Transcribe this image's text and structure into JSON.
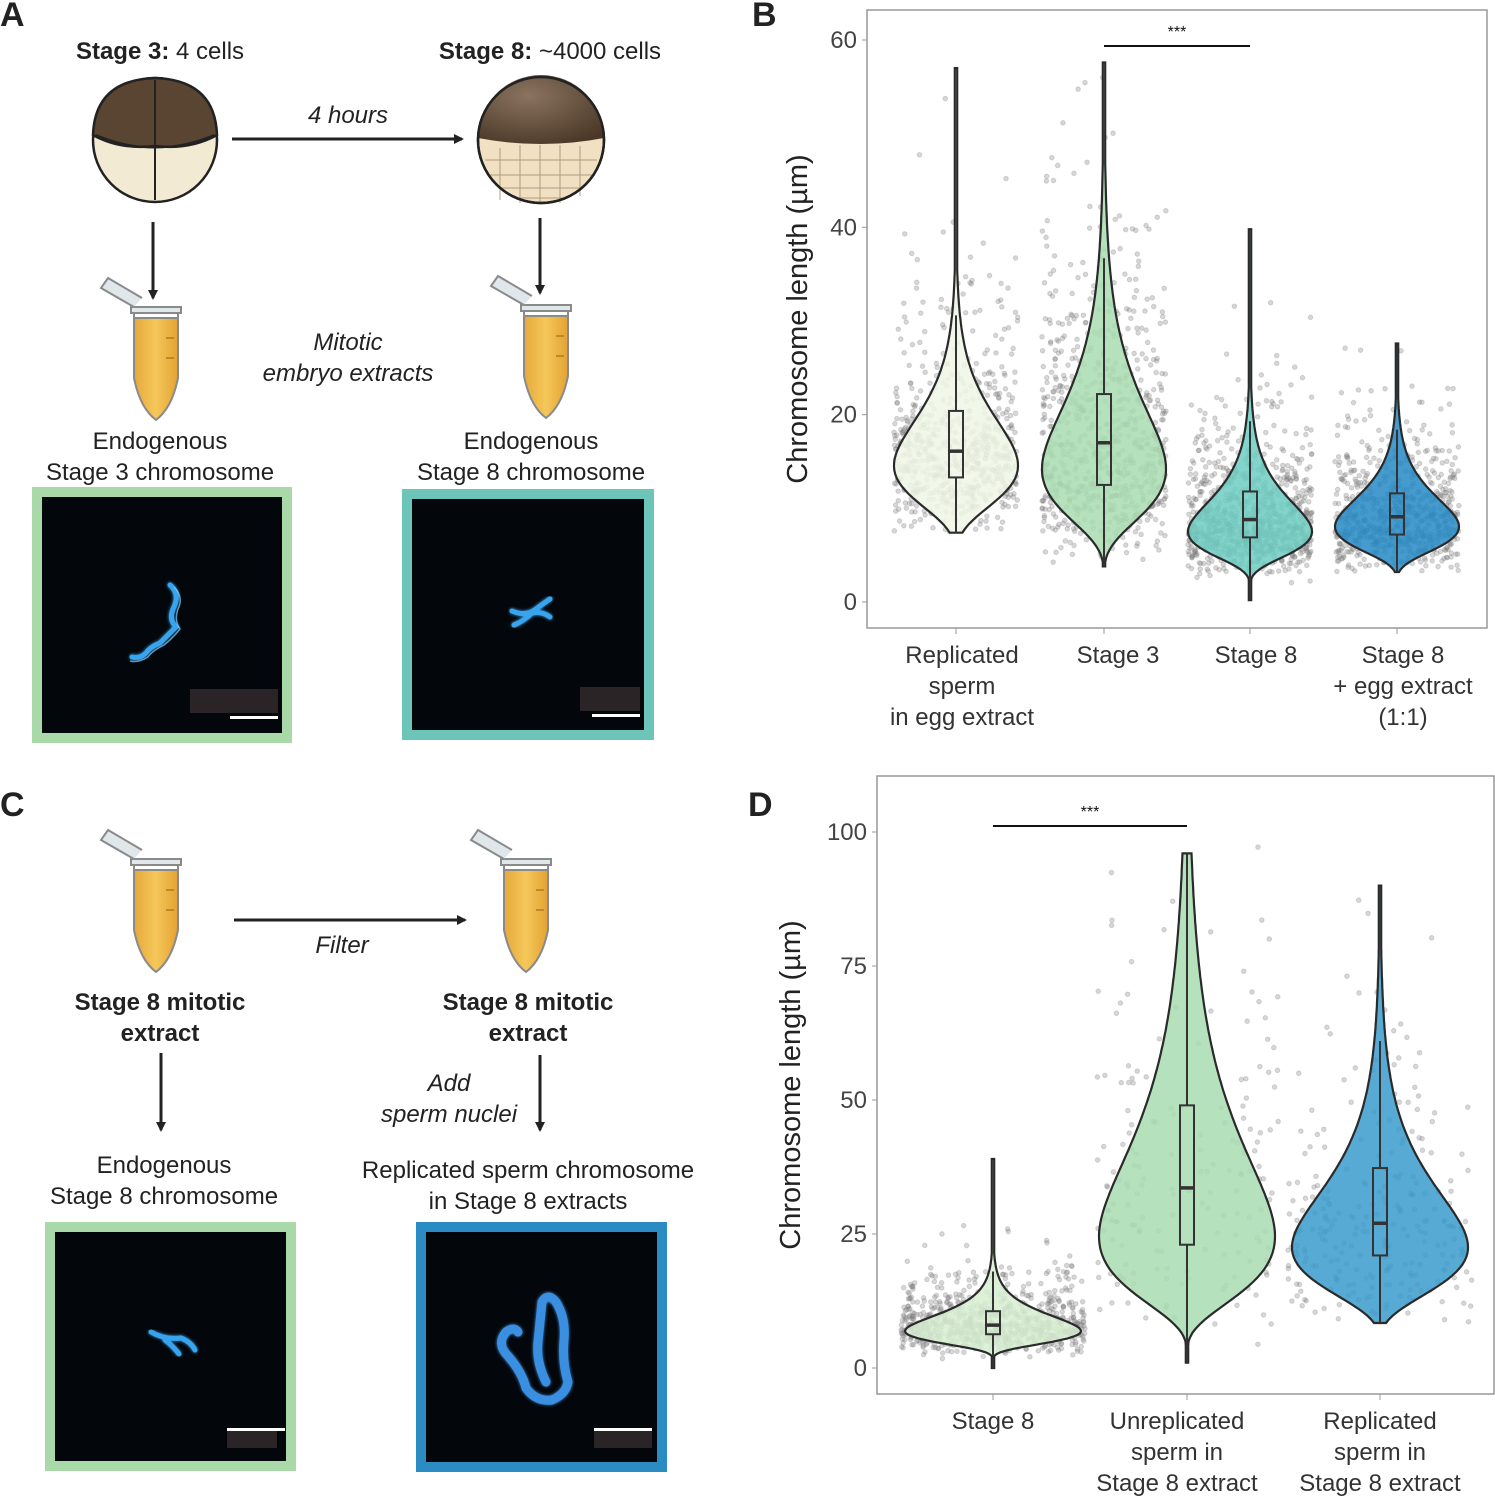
{
  "panels": {
    "a": {
      "label": "A",
      "stage3_title_bold": "Stage 3:",
      "stage3_title_rest": " 4 cells",
      "stage8_title_bold": "Stage 8:",
      "stage8_title_rest": " ~4000 cells",
      "arrow_label": "4 hours",
      "extract_label_line1": "Mitotic",
      "extract_label_line2": "embryo extracts",
      "left_caption_line1": "Endogenous",
      "left_caption_line2": "Stage 3 chromosome",
      "right_caption_line1": "Endogenous",
      "right_caption_line2": "Stage 8 chromosome",
      "left_frame_color": "#a9d9a8",
      "right_frame_color": "#6dc5b9"
    },
    "c": {
      "label": "C",
      "arrow_label": "Filter",
      "left_tube_line1": "Stage 8 mitotic",
      "left_tube_line2": "extract",
      "right_tube_line1": "Stage 8 mitotic",
      "right_tube_line2": "extract",
      "add_label_line1": "Add",
      "add_label_line2": "sperm nuclei",
      "left_caption_line1": "Endogenous",
      "left_caption_line2": "Stage 8 chromosome",
      "right_caption_line1": "Replicated sperm chromosome",
      "right_caption_line2": "in Stage 8 extracts",
      "left_frame_color": "#a9d9a8",
      "right_frame_color": "#2b8cc4"
    },
    "b": {
      "label": "B"
    },
    "d": {
      "label": "D"
    }
  },
  "chart_data": [
    {
      "type": "violin",
      "panel": "B",
      "ylabel": "Chromosome length (µm)",
      "ylim": [
        0,
        60
      ],
      "yticks": [
        "0",
        "20",
        "40",
        "60"
      ],
      "grid": false,
      "categories": [
        [
          "Replicated",
          "sperm",
          "in egg extract"
        ],
        [
          "Stage 3"
        ],
        [
          "Stage 8"
        ],
        [
          "Stage 8",
          "+ egg extract",
          "(1:1)"
        ]
      ],
      "series": [
        {
          "min": 7.4,
          "q1": 13.3,
          "median": 16.1,
          "q3": 20.4,
          "upper_whisker": 30.6,
          "max": 57.0,
          "color": "#eef7e5"
        },
        {
          "min": 3.8,
          "q1": 12.5,
          "median": 17.0,
          "q3": 22.2,
          "upper_whisker": 36.7,
          "max": 57.6,
          "color": "#a9dcb1"
        },
        {
          "min": 0.2,
          "q1": 6.9,
          "median": 8.8,
          "q3": 11.8,
          "upper_whisker": 19.3,
          "max": 39.8,
          "color": "#6dcdc2"
        },
        {
          "min": 3.2,
          "q1": 7.2,
          "median": 9.1,
          "q3": 11.6,
          "upper_whisker": 18.4,
          "max": 27.6,
          "color": "#2489c4"
        }
      ],
      "significance": {
        "from": 1,
        "to": 2,
        "label": "***"
      }
    },
    {
      "type": "violin",
      "panel": "D",
      "ylabel": "Chromosome length (µm)",
      "ylim": [
        0,
        100
      ],
      "yticks": [
        "0",
        "25",
        "50",
        "75",
        "100"
      ],
      "grid": false,
      "categories": [
        [
          "Stage 8"
        ],
        [
          "Unreplicated",
          "sperm in",
          "Stage 8 extract"
        ],
        [
          "Replicated",
          "sperm in",
          "Stage 8 extract"
        ]
      ],
      "series": [
        {
          "min": 0.0,
          "q1": 6.3,
          "median": 8.0,
          "q3": 10.6,
          "upper_whisker": 18.0,
          "max": 39.0,
          "color": "#d7efd2"
        },
        {
          "min": 1.0,
          "q1": 23.0,
          "median": 33.6,
          "q3": 49.0,
          "upper_whisker": 96.0,
          "max": 96.0,
          "color": "#a9dcb1"
        },
        {
          "min": 8.4,
          "q1": 21.0,
          "median": 27.0,
          "q3": 37.3,
          "upper_whisker": 61.0,
          "max": 90.0,
          "color": "#3a9bcc"
        }
      ],
      "significance": {
        "from": 0,
        "to": 1,
        "label": "***"
      }
    }
  ]
}
